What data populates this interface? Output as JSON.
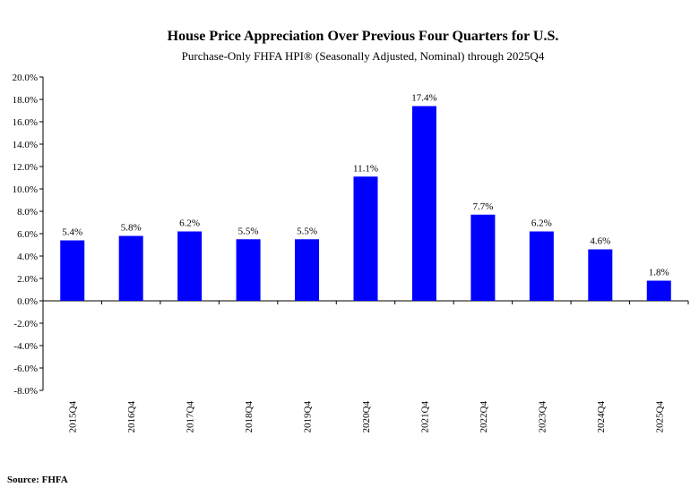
{
  "chart_data": {
    "type": "bar",
    "title": "House Price Appreciation Over Previous Four Quarters for U.S.",
    "subtitle": "Purchase-Only FHFA HPI® (Seasonally Adjusted, Nominal) through 2025Q4",
    "xlabel": "",
    "ylabel": "",
    "ylim": [
      -8,
      20
    ],
    "yticks": [
      20,
      18,
      16,
      14,
      12,
      10,
      8,
      6,
      4,
      2,
      0,
      -2,
      -4,
      -6,
      -8
    ],
    "ytick_labels": [
      "20.0%",
      "18.0%",
      "16.0%",
      "14.0%",
      "12.0%",
      "10.0%",
      "8.0%",
      "6.0%",
      "4.0%",
      "2.0%",
      "0.0%",
      "-2.0%",
      "-4.0%",
      "-6.0%",
      "-8.0%"
    ],
    "categories": [
      "2015Q4",
      "2016Q4",
      "2017Q4",
      "2018Q4",
      "2019Q4",
      "2020Q4",
      "2021Q4",
      "2022Q4",
      "2023Q4",
      "2024Q4",
      "2025Q4"
    ],
    "values": [
      5.4,
      5.8,
      6.2,
      5.5,
      5.5,
      11.1,
      17.4,
      7.7,
      6.2,
      4.6,
      1.8
    ],
    "data_labels": [
      "5.4%",
      "5.8%",
      "6.2%",
      "5.5%",
      "5.5%",
      "11.1%",
      "17.4%",
      "7.7%",
      "6.2%",
      "4.6%",
      "1.8%"
    ],
    "bar_color": "#0000ff",
    "grid": false,
    "legend": "none"
  },
  "source": {
    "text": "Source:  FHFA"
  }
}
